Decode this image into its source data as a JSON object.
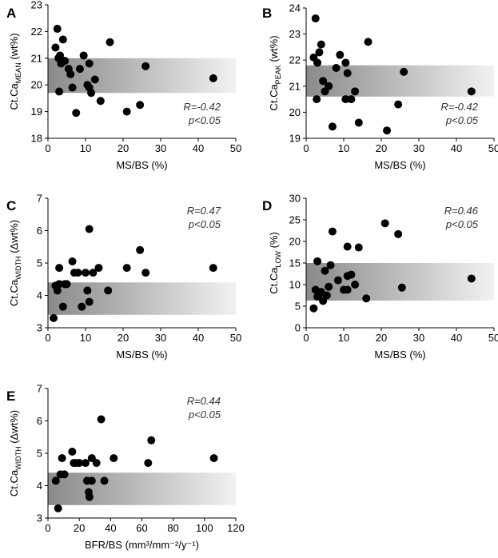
{
  "chart_data": [
    {
      "panel": "A",
      "type": "scatter",
      "xlabel": "MS/BS (%)",
      "ylabel": {
        "main": "Ct.Ca",
        "sub": "MEAN",
        "unit": " (wt%)"
      },
      "xlim": [
        0,
        50
      ],
      "ylim": [
        18,
        23
      ],
      "xticks": [
        0,
        10,
        20,
        30,
        40,
        50
      ],
      "yticks": [
        18,
        19,
        20,
        21,
        22,
        23
      ],
      "band": [
        19.7,
        21.0
      ],
      "annotation": [
        "R=-0.42",
        "p<0.05"
      ],
      "points": [
        [
          2.5,
          22.1
        ],
        [
          2,
          21.4
        ],
        [
          4,
          21.7
        ],
        [
          2.8,
          21.0
        ],
        [
          3.5,
          20.8
        ],
        [
          3.2,
          21.1
        ],
        [
          4.5,
          20.9
        ],
        [
          5.5,
          20.6
        ],
        [
          6,
          20.4
        ],
        [
          8.5,
          20.6
        ],
        [
          9.5,
          21.1
        ],
        [
          11,
          20.8
        ],
        [
          3,
          19.75
        ],
        [
          6.5,
          19.9
        ],
        [
          10.5,
          20.0
        ],
        [
          11,
          19.9
        ],
        [
          11.5,
          19.7
        ],
        [
          12.5,
          20.2
        ],
        [
          14,
          19.4
        ],
        [
          7.5,
          18.95
        ],
        [
          16.5,
          21.6
        ],
        [
          21,
          19.0
        ],
        [
          24.5,
          19.25
        ],
        [
          26,
          20.7
        ],
        [
          44,
          20.25
        ]
      ]
    },
    {
      "panel": "B",
      "type": "scatter",
      "xlabel": "MS/BS (%)",
      "ylabel": {
        "main": "Ct.Ca",
        "sub": "PEAK",
        "unit": " (wt%)"
      },
      "xlim": [
        0,
        50
      ],
      "ylim": [
        19,
        24
      ],
      "xticks": [
        0,
        10,
        20,
        30,
        40,
        50
      ],
      "yticks": [
        19,
        20,
        21,
        22,
        23,
        24
      ],
      "band": [
        20.6,
        21.8
      ],
      "annotation": [
        "R=-0.42",
        "p<0.05"
      ],
      "points": [
        [
          2.5,
          23.6
        ],
        [
          2,
          22.1
        ],
        [
          3.5,
          22.3
        ],
        [
          4,
          22.6
        ],
        [
          3,
          21.9
        ],
        [
          2.8,
          20.5
        ],
        [
          4.5,
          21.2
        ],
        [
          5,
          20.8
        ],
        [
          6,
          21.0
        ],
        [
          8,
          21.7
        ],
        [
          9,
          22.2
        ],
        [
          10.5,
          21.9
        ],
        [
          11,
          21.5
        ],
        [
          10.5,
          20.5
        ],
        [
          12,
          20.5
        ],
        [
          13,
          20.8
        ],
        [
          14,
          19.6
        ],
        [
          16.5,
          22.7
        ],
        [
          7,
          19.45
        ],
        [
          21.5,
          19.3
        ],
        [
          24.5,
          20.3
        ],
        [
          26,
          21.55
        ],
        [
          44,
          20.8
        ]
      ]
    },
    {
      "panel": "C",
      "type": "scatter",
      "xlabel": "MS/BS (%)",
      "ylabel": {
        "main": "Ct.Ca",
        "sub": "WIDTH",
        "unit": " (Δwt%)"
      },
      "xlim": [
        0,
        50
      ],
      "ylim": [
        3,
        7
      ],
      "xticks": [
        0,
        10,
        20,
        30,
        40,
        50
      ],
      "yticks": [
        3,
        4,
        5,
        6,
        7
      ],
      "band": [
        3.4,
        4.4
      ],
      "annotation": [
        "R=0.47",
        "p<0.05"
      ],
      "points": [
        [
          1.5,
          3.3
        ],
        [
          2,
          4.3
        ],
        [
          2.5,
          4.15
        ],
        [
          3,
          4.35
        ],
        [
          3,
          4.85
        ],
        [
          4,
          3.65
        ],
        [
          4.5,
          4.35
        ],
        [
          5,
          4.35
        ],
        [
          6.5,
          5.05
        ],
        [
          7,
          4.7
        ],
        [
          8,
          4.7
        ],
        [
          9,
          3.65
        ],
        [
          10,
          4.7
        ],
        [
          10.5,
          4.15
        ],
        [
          11,
          3.8
        ],
        [
          11,
          6.05
        ],
        [
          12,
          4.7
        ],
        [
          13.5,
          4.85
        ],
        [
          16,
          4.15
        ],
        [
          21,
          4.85
        ],
        [
          24.5,
          5.4
        ],
        [
          26,
          4.7
        ],
        [
          44,
          4.85
        ]
      ]
    },
    {
      "panel": "D",
      "type": "scatter",
      "xlabel": "MS/BS (%)",
      "ylabel": {
        "main": "Ct.Ca",
        "sub": "LOW",
        "unit": " (%)"
      },
      "xlim": [
        0,
        50
      ],
      "ylim": [
        0,
        30
      ],
      "xticks": [
        0,
        10,
        20,
        30,
        40,
        50
      ],
      "yticks": [
        0,
        5,
        10,
        15,
        20,
        25,
        30
      ],
      "band": [
        6.3,
        15.0
      ],
      "annotation": [
        "R=0.46",
        "p<0.05"
      ],
      "points": [
        [
          2,
          4.5
        ],
        [
          2.5,
          8.8
        ],
        [
          3,
          15.4
        ],
        [
          3,
          7.2
        ],
        [
          3.5,
          7.8
        ],
        [
          4,
          8.3
        ],
        [
          4.5,
          6.2
        ],
        [
          5,
          13.2
        ],
        [
          5.5,
          7.5
        ],
        [
          6,
          9.5
        ],
        [
          6.5,
          14.5
        ],
        [
          7,
          22.3
        ],
        [
          8.5,
          11.0
        ],
        [
          10,
          8.8
        ],
        [
          11,
          18.8
        ],
        [
          11,
          12.0
        ],
        [
          11,
          8.8
        ],
        [
          12,
          12.3
        ],
        [
          13,
          10.0
        ],
        [
          14,
          18.6
        ],
        [
          16,
          6.8
        ],
        [
          21,
          24.2
        ],
        [
          24.5,
          21.7
        ],
        [
          25.5,
          9.3
        ],
        [
          44,
          11.4
        ]
      ]
    },
    {
      "panel": "E",
      "type": "scatter",
      "xlabel": "BFR/BS (mm³/mm⁻²/y⁻¹)",
      "ylabel": {
        "main": "Ct.Ca",
        "sub": "WIDTH",
        "unit": " (Δwt%)"
      },
      "xlim": [
        0,
        120
      ],
      "ylim": [
        3,
        7
      ],
      "xticks": [
        0,
        20,
        40,
        60,
        80,
        100,
        120
      ],
      "yticks": [
        3,
        4,
        5,
        6,
        7
      ],
      "band": [
        3.4,
        4.4
      ],
      "annotation": [
        "R=0.44",
        "p<0.05"
      ],
      "points": [
        [
          5,
          4.15
        ],
        [
          6.5,
          3.3
        ],
        [
          8,
          4.35
        ],
        [
          9,
          4.85
        ],
        [
          10.5,
          4.35
        ],
        [
          15.5,
          5.05
        ],
        [
          16.5,
          4.7
        ],
        [
          18,
          4.7
        ],
        [
          20,
          4.7
        ],
        [
          24,
          4.7
        ],
        [
          25,
          4.15
        ],
        [
          26,
          3.8
        ],
        [
          26.5,
          3.65
        ],
        [
          28,
          4.85
        ],
        [
          28,
          4.15
        ],
        [
          31,
          4.7
        ],
        [
          34,
          6.05
        ],
        [
          36,
          4.15
        ],
        [
          42,
          4.85
        ],
        [
          64,
          4.7
        ],
        [
          66,
          5.4
        ],
        [
          106,
          4.85
        ]
      ]
    }
  ]
}
